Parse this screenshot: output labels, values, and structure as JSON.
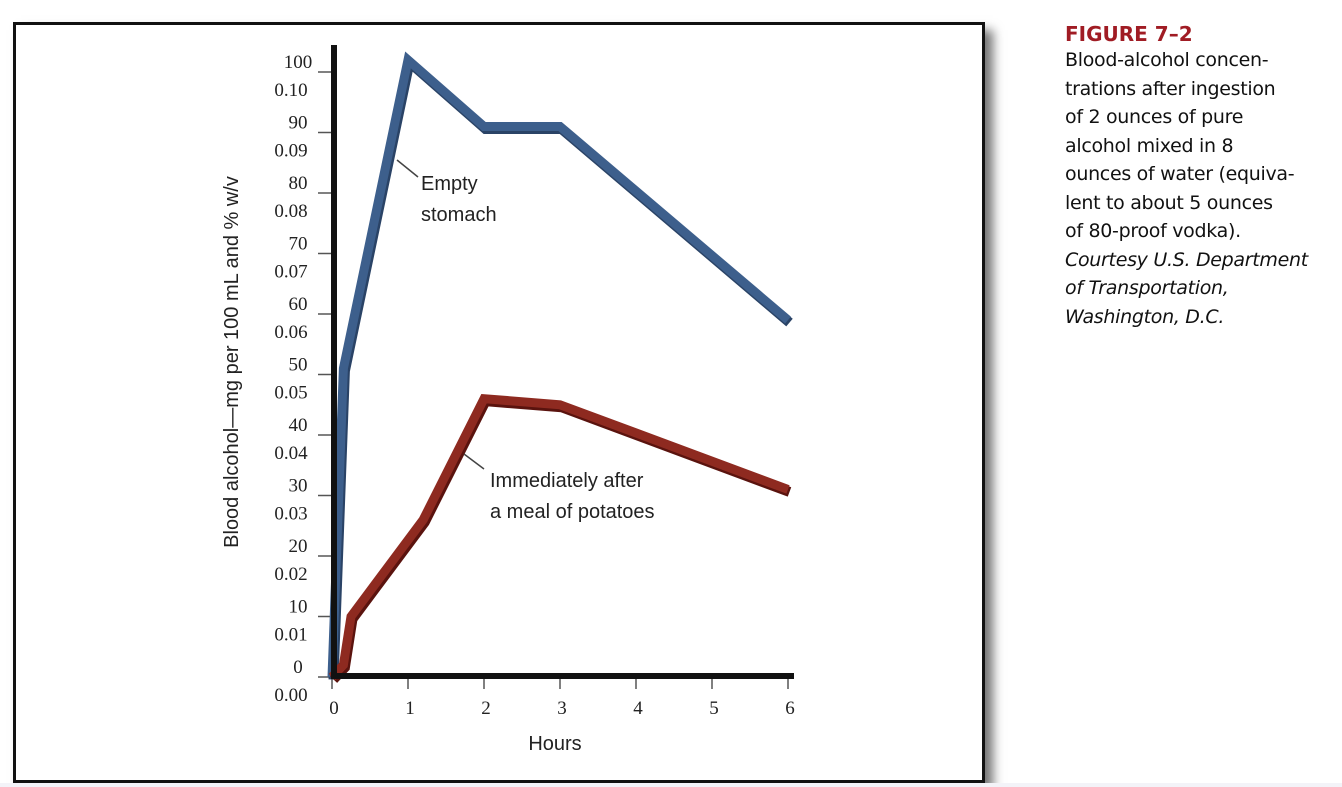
{
  "figure": {
    "label": "FIGURE 7–2",
    "description": "Blood-alcohol concen-\ntrations after ingestion\nof 2 ounces of pure\nalcohol mixed in 8\nounces of water (equiva-\nlent to about 5 ounces\nof 80-proof vodka).",
    "credit": "Courtesy U.S. Department\nof Transportation,\nWashington, D.C.",
    "colors": {
      "title": "#a01c24",
      "empty_stomach": "#3d5f8c",
      "potatoes": "#8e2a20"
    }
  },
  "chart_data": {
    "type": "line",
    "title": "",
    "xlabel": "Hours",
    "ylabel": "Blood alcohol—mg per 100 mL and % w/v",
    "xlim": [
      0,
      6
    ],
    "ylim": [
      0,
      100
    ],
    "grid": false,
    "x_ticks": [
      "0",
      "1",
      "2",
      "3",
      "4",
      "5",
      "6"
    ],
    "y_ticks": [
      {
        "value": 100,
        "mg": "100",
        "pct": "0.10"
      },
      {
        "value": 90,
        "mg": "90",
        "pct": "0.09"
      },
      {
        "value": 80,
        "mg": "80",
        "pct": "0.08"
      },
      {
        "value": 70,
        "mg": "70",
        "pct": "0.07"
      },
      {
        "value": 60,
        "mg": "60",
        "pct": "0.06"
      },
      {
        "value": 50,
        "mg": "50",
        "pct": "0.05"
      },
      {
        "value": 40,
        "mg": "40",
        "pct": "0.04"
      },
      {
        "value": 30,
        "mg": "30",
        "pct": "0.03"
      },
      {
        "value": 20,
        "mg": "20",
        "pct": "0.02"
      },
      {
        "value": 10,
        "mg": "10",
        "pct": "0.01"
      },
      {
        "value": 0,
        "mg": "0",
        "pct": "0.00"
      }
    ],
    "series": [
      {
        "name": "Empty stomach",
        "label_lines": [
          "Empty",
          "stomach"
        ],
        "color": "#3d5f8c",
        "x": [
          0,
          0.15,
          1.0,
          2.0,
          3.0,
          6.0
        ],
        "y": [
          0,
          51,
          102,
          91,
          91,
          59
        ]
      },
      {
        "name": "Immediately after a meal of potatoes",
        "label_lines": [
          "Immediately after",
          "a meal of potatoes"
        ],
        "color": "#8e2a20",
        "x": [
          0,
          0.15,
          0.25,
          1.2,
          2.0,
          3.0,
          6.0
        ],
        "y": [
          0,
          2,
          10,
          26,
          46,
          45,
          31
        ]
      }
    ]
  }
}
